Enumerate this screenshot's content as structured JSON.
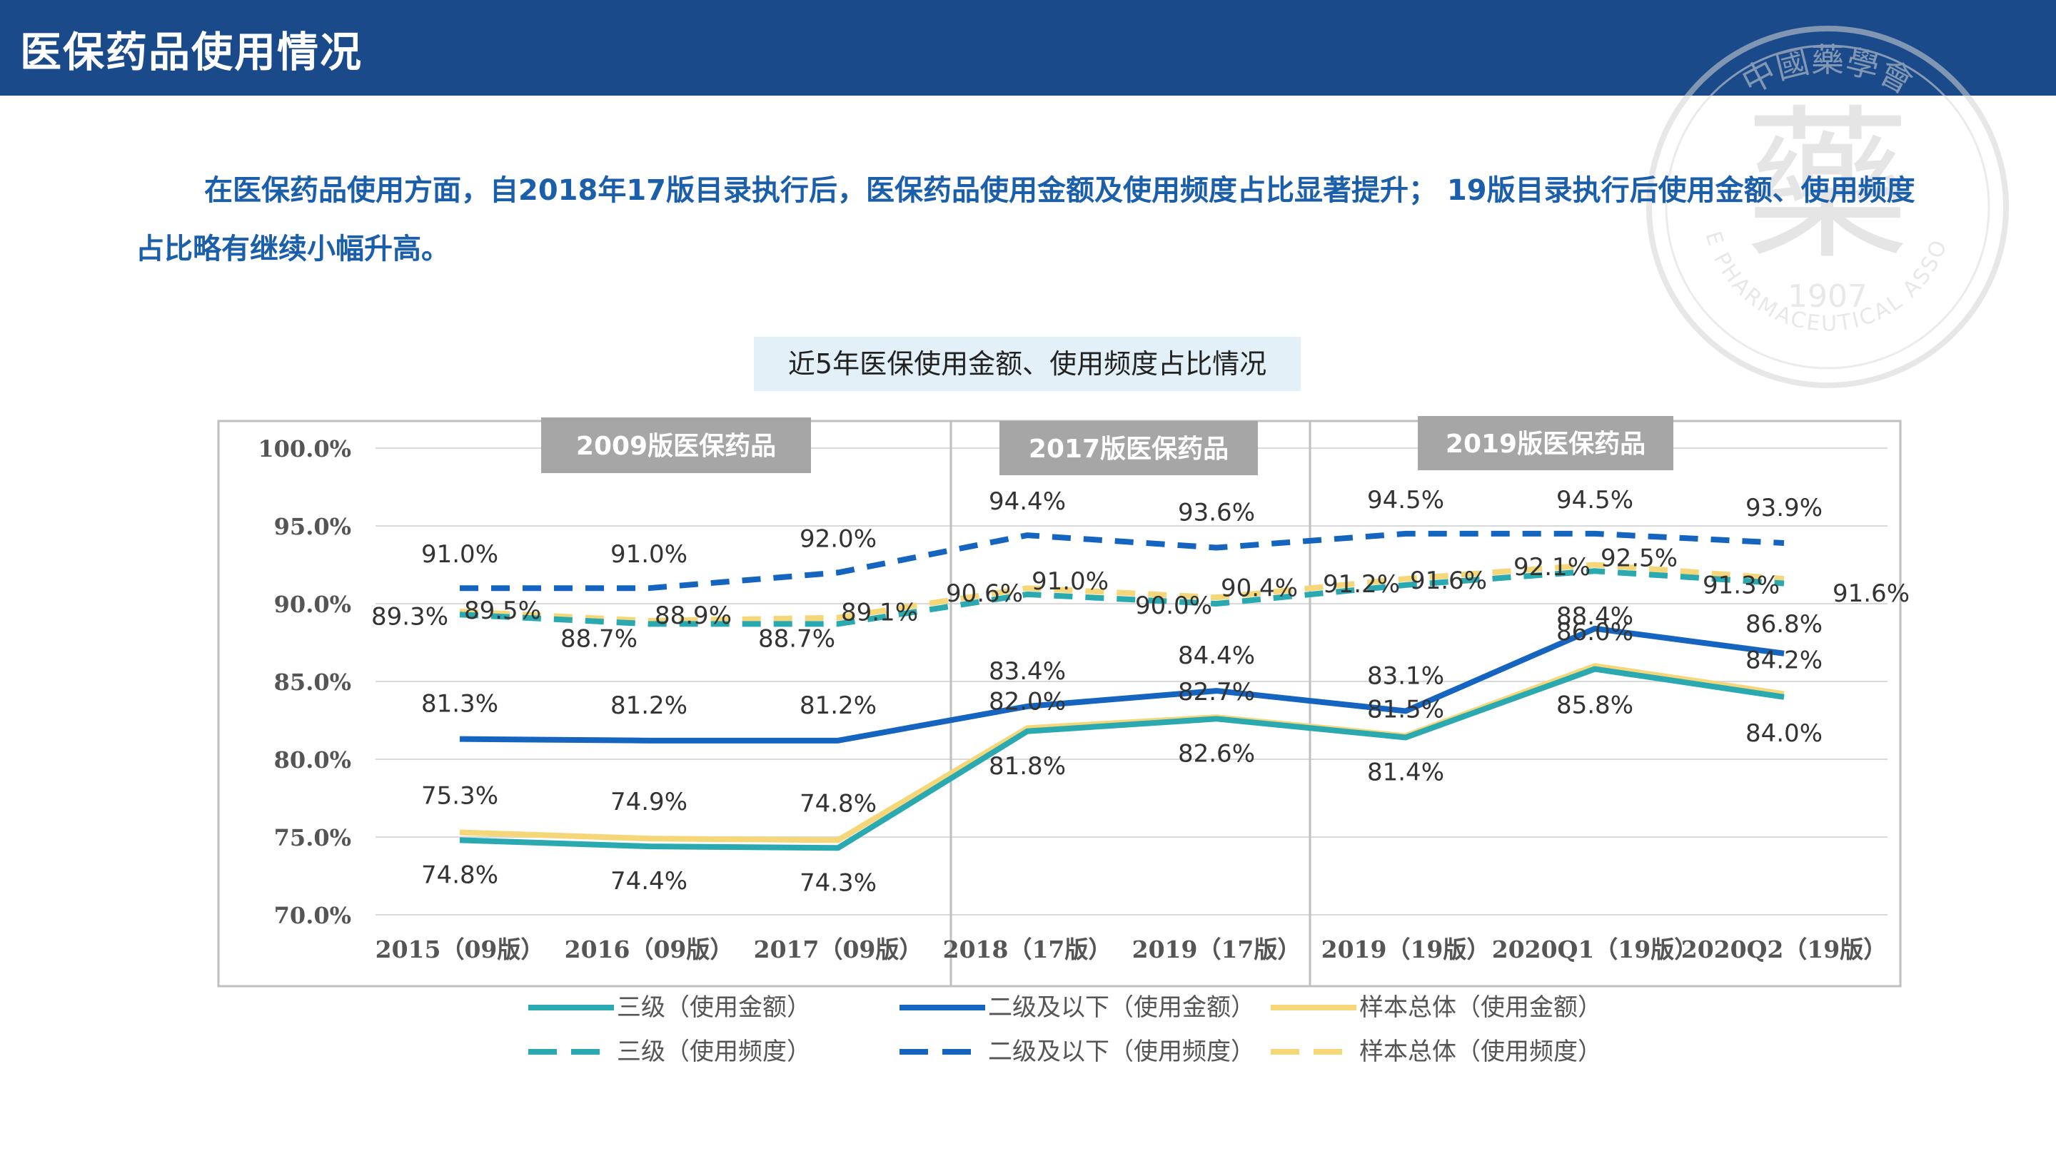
{
  "header": {
    "title": "医保药品使用情况"
  },
  "intro": {
    "text": "在医保药品使用方面，自2018年17版目录执行后，医保药品使用金额及使用频度占比显著提升； 19版目录执行后使用金额、使用频度占比略有继续小幅升高。"
  },
  "seal": {
    "top_text": "中國藥學會",
    "char": "藥",
    "year": "1907",
    "bottom_text": "CHINESE PHARMACEUTICAL ASSOCIATION"
  },
  "colors": {
    "header_bg": "#1b4a8a",
    "teal": "#2aaab0",
    "dark_blue": "#1565c0",
    "yellow": "#f5d77a",
    "period_label_bg": "#a6a6a6"
  },
  "chart_data": {
    "type": "line",
    "title": "近5年医保使用金额、使用频度占比情况",
    "categories": [
      "2015（09版）",
      "2016（09版）",
      "2017（09版）",
      "2018（17版）",
      "2019（17版）",
      "2019（19版）",
      "2020Q1（19版）",
      "2020Q2（19版）"
    ],
    "ylim": [
      70,
      100
    ],
    "yticks": [
      "70.0%",
      "75.0%",
      "80.0%",
      "85.0%",
      "90.0%",
      "95.0%",
      "100.0%"
    ],
    "periods": [
      {
        "label": "2009版医保药品",
        "from": 0,
        "to": 2
      },
      {
        "label": "2017版医保药品",
        "from": 3,
        "to": 4
      },
      {
        "label": "2019版医保药品",
        "from": 5,
        "to": 7
      }
    ],
    "series": [
      {
        "name": "三级（使用金额）",
        "color": "#2aaab0",
        "dash": false,
        "values": [
          74.8,
          74.4,
          74.3,
          81.8,
          82.6,
          81.4,
          85.8,
          84.0
        ],
        "labels": [
          "74.8%",
          "74.4%",
          "74.3%",
          "81.8%",
          "82.6%",
          "81.4%",
          "85.8%",
          "84.0%"
        ]
      },
      {
        "name": "二级及以下（使用金额）",
        "color": "#1565c0",
        "dash": false,
        "values": [
          81.3,
          81.2,
          81.2,
          83.4,
          84.4,
          83.1,
          88.4,
          86.8
        ],
        "labels": [
          "81.3%",
          "81.2%",
          "81.2%",
          "83.4%",
          "84.4%",
          "83.1%",
          "88.4%",
          "86.8%"
        ]
      },
      {
        "name": "样本总体（使用金额）",
        "color": "#f5d77a",
        "dash": false,
        "values": [
          75.3,
          74.9,
          74.8,
          82.0,
          82.7,
          81.5,
          86.0,
          84.2
        ],
        "labels": [
          "75.3%",
          "74.9%",
          "74.8%",
          "82.0%",
          "82.7%",
          "81.5%",
          "86.0%",
          "84.2%"
        ]
      },
      {
        "name": "三级（使用频度）",
        "color": "#2aaab0",
        "dash": true,
        "values": [
          89.3,
          88.7,
          88.7,
          90.6,
          90.0,
          91.2,
          92.1,
          91.3
        ],
        "labels": [
          "89.3%",
          "88.7%",
          "88.7%",
          "90.6%",
          "90.0%",
          "91.2%",
          "92.1%",
          "91.3%"
        ]
      },
      {
        "name": "二级及以下（使用频度）",
        "color": "#1565c0",
        "dash": true,
        "values": [
          91.0,
          91.0,
          92.0,
          94.4,
          93.6,
          94.5,
          94.5,
          93.9
        ],
        "labels": [
          "91.0%",
          "91.0%",
          "92.0%",
          "94.4%",
          "93.6%",
          "94.5%",
          "94.5%",
          "93.9%"
        ]
      },
      {
        "name": "样本总体（使用频度）",
        "color": "#f5d77a",
        "dash": true,
        "values": [
          89.5,
          88.9,
          89.1,
          91.0,
          90.4,
          91.6,
          92.5,
          91.6
        ],
        "labels": [
          "89.5%",
          "88.9%",
          "89.1%",
          "91.0%",
          "90.4%",
          "91.6%",
          "92.5%",
          "91.6%"
        ]
      }
    ],
    "legend_position": "bottom"
  }
}
